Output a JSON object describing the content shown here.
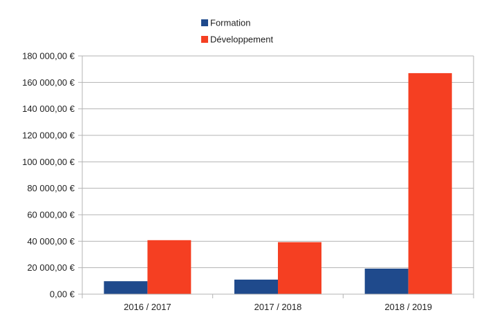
{
  "chart_data": {
    "type": "bar",
    "categories": [
      "2016 / 2017",
      "2017 / 2018",
      "2018 / 2019"
    ],
    "series": [
      {
        "name": "Formation",
        "values": [
          9800,
          11000,
          19300
        ],
        "color": "#1f4a8c"
      },
      {
        "name": "Développement",
        "values": [
          40800,
          39300,
          167000
        ],
        "color": "#f53f22"
      }
    ],
    "ylim": [
      0,
      180000
    ],
    "y_ticks": [
      0,
      20000,
      40000,
      60000,
      80000,
      100000,
      120000,
      140000,
      160000,
      180000
    ],
    "y_tick_labels": [
      "0,00 €",
      "20 000,00 €",
      "40 000,00 €",
      "60 000,00 €",
      "80 000,00 €",
      "100 000,00 €",
      "120 000,00 €",
      "140 000,00 €",
      "160 000,00 €",
      "180 000,00 €"
    ],
    "grid": true,
    "legend_position": "top-center",
    "title": "",
    "xlabel": "",
    "ylabel": ""
  }
}
